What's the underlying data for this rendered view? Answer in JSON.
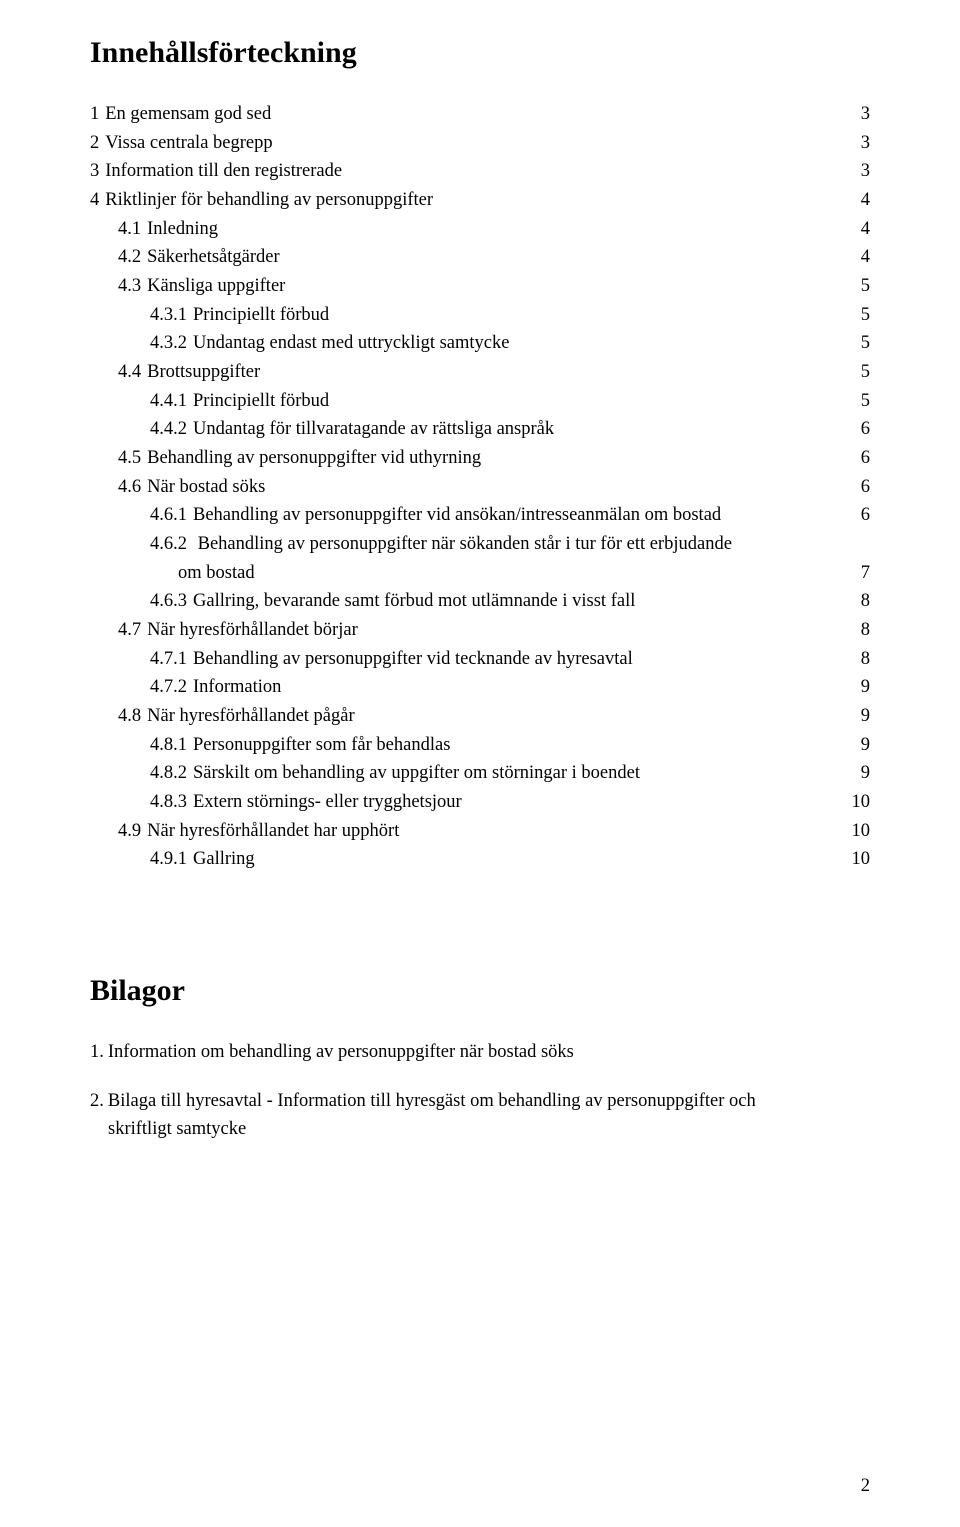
{
  "toc": {
    "title": "Innehållsförteckning",
    "entries": [
      {
        "num": "1",
        "label": "En gemensam god sed",
        "page": "3",
        "indent": 0
      },
      {
        "num": "2",
        "label": "Vissa centrala begrepp",
        "page": "3",
        "indent": 0
      },
      {
        "num": "3",
        "label": "Information till den registrerade",
        "page": "3",
        "indent": 0
      },
      {
        "num": "4",
        "label": "Riktlinjer för behandling av personuppgifter",
        "page": "4",
        "indent": 0
      },
      {
        "num": "4.1",
        "label": "Inledning",
        "page": "4",
        "indent": 1
      },
      {
        "num": "4.2",
        "label": "Säkerhetsåtgärder",
        "page": "4",
        "indent": 1
      },
      {
        "num": "4.3",
        "label": "Känsliga uppgifter",
        "page": "5",
        "indent": 1
      },
      {
        "num": "4.3.1",
        "label": "Principiellt förbud",
        "page": "5",
        "indent": 2
      },
      {
        "num": "4.3.2",
        "label": "Undantag endast med uttryckligt samtycke",
        "page": "5",
        "indent": 2
      },
      {
        "num": "4.4",
        "label": "Brottsuppgifter",
        "page": "5",
        "indent": 1
      },
      {
        "num": "4.4.1",
        "label": "Principiellt förbud",
        "page": "5",
        "indent": 2
      },
      {
        "num": "4.4.2",
        "label": "Undantag för tillvaratagande av rättsliga anspråk",
        "page": "6",
        "indent": 2
      },
      {
        "num": "4.5",
        "label": "Behandling av personuppgifter vid uthyrning",
        "page": "6",
        "indent": 1
      },
      {
        "num": "4.6",
        "label": "När bostad söks",
        "page": "6",
        "indent": 1
      },
      {
        "num": "4.6.1",
        "label": "Behandling av personuppgifter vid ansökan/intresseanmälan om bostad",
        "page": "6",
        "indent": 2
      },
      {
        "num": "4.6.2",
        "label": "Behandling av personuppgifter när sökanden står i tur för ett erbjudande",
        "label2": "om bostad",
        "page": "7",
        "indent": 2,
        "wrap": true
      },
      {
        "num": "4.6.3",
        "label": "Gallring, bevarande samt förbud mot utlämnande i visst fall",
        "page": "8",
        "indent": 2
      },
      {
        "num": "4.7",
        "label": "När hyresförhållandet börjar",
        "page": "8",
        "indent": 1
      },
      {
        "num": "4.7.1",
        "label": "Behandling av personuppgifter vid tecknande av hyresavtal",
        "page": "8",
        "indent": 2
      },
      {
        "num": "4.7.2",
        "label": "Information",
        "page": "9",
        "indent": 2
      },
      {
        "num": "4.8",
        "label": "När hyresförhållandet pågår",
        "page": "9",
        "indent": 1
      },
      {
        "num": "4.8.1",
        "label": "Personuppgifter som får behandlas",
        "page": "9",
        "indent": 2
      },
      {
        "num": "4.8.2",
        "label": "Särskilt om behandling av uppgifter om störningar i boendet",
        "page": "9",
        "indent": 2
      },
      {
        "num": "4.8.3",
        "label": "Extern störnings- eller trygghetsjour",
        "page": "10",
        "indent": 2
      },
      {
        "num": "4.9",
        "label": "När hyresförhållandet har upphört",
        "page": "10",
        "indent": 1
      },
      {
        "num": "4.9.1",
        "label": "Gallring",
        "page": "10",
        "indent": 2
      }
    ]
  },
  "bilagor": {
    "title": "Bilagor",
    "items": [
      {
        "num": "1.",
        "text": "Information om behandling av personuppgifter när bostad söks"
      },
      {
        "num": "2.",
        "text": "Bilaga till hyresavtal - Information till hyresgäst om behandling av personuppgifter och",
        "text2": "skriftligt samtycke"
      }
    ]
  },
  "page_number": "2"
}
